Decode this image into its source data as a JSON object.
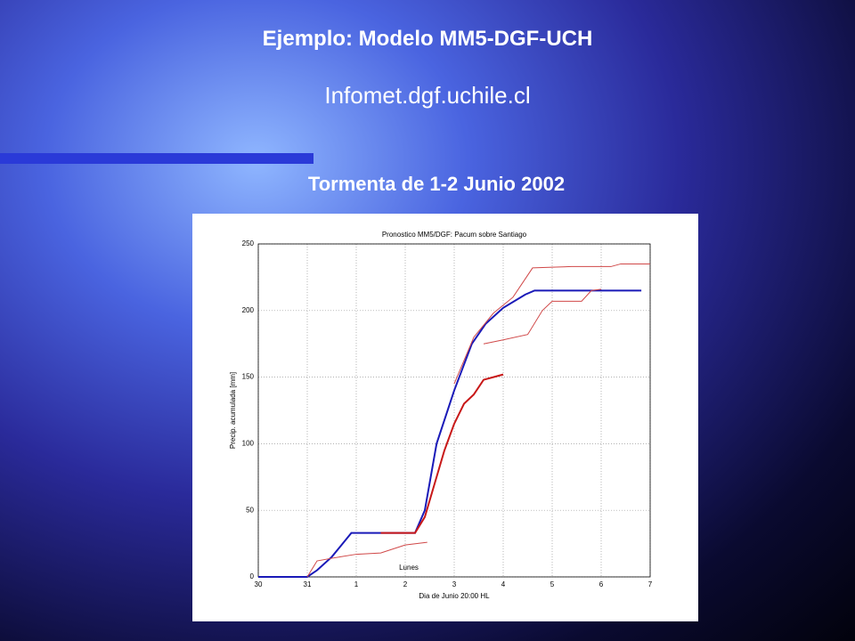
{
  "slide": {
    "title": "Ejemplo: Modelo MM5-DGF-UCH",
    "subtitle": "Infomet.dgf.uchile.cl",
    "heading": "Tormenta de 1-2 Junio 2002"
  },
  "chart_data": {
    "type": "line",
    "title": "Pronostico MM5/DGF: Pacum sobre Santiago",
    "x_label": "Dia de Junio 20:00 HL",
    "y_label": "Precip. acumulada [mm]",
    "annotation": "Lunes",
    "grid": true,
    "xlim": [
      0,
      8
    ],
    "xticks": [
      {
        "value": 0,
        "label": "30"
      },
      {
        "value": 1,
        "label": "31"
      },
      {
        "value": 2,
        "label": "1"
      },
      {
        "value": 3,
        "label": "2"
      },
      {
        "value": 4,
        "label": "3"
      },
      {
        "value": 5,
        "label": "4"
      },
      {
        "value": 6,
        "label": "5"
      },
      {
        "value": 7,
        "label": "6"
      },
      {
        "value": 8,
        "label": "7"
      }
    ],
    "ylim": [
      0,
      250
    ],
    "yticks": [
      0,
      50,
      100,
      150,
      200,
      250
    ],
    "series": [
      {
        "color": "#1a1ab8",
        "width": 2,
        "x": [
          0,
          1,
          1.2,
          1.5,
          1.9,
          3.2,
          3.4,
          3.64,
          4.0,
          4.36,
          4.64,
          5.0,
          5.45,
          5.64,
          7.82
        ],
        "values": [
          0,
          0,
          5,
          15,
          33,
          33,
          50,
          100,
          140,
          175,
          190,
          202,
          212,
          215,
          215
        ]
      },
      {
        "color": "#d04848",
        "width": 1,
        "x": [
          1,
          1.2,
          1.5,
          2,
          2.5,
          3,
          3.45
        ],
        "values": [
          0,
          12,
          14,
          17,
          18,
          24,
          26
        ]
      },
      {
        "color": "#c81818",
        "width": 2,
        "x": [
          2.5,
          3.2,
          3.4,
          3.6,
          3.8,
          4.0,
          4.2,
          4.4,
          4.6,
          4.8,
          5.0
        ],
        "values": [
          33,
          33,
          45,
          70,
          95,
          115,
          130,
          137,
          148,
          150,
          152
        ]
      },
      {
        "color": "#d04848",
        "width": 1,
        "x": [
          4.0,
          4.4,
          4.8,
          5.2,
          5.6,
          6.4,
          7.2,
          7.4,
          8
        ],
        "values": [
          145,
          180,
          198,
          210,
          232,
          233,
          233,
          235,
          235
        ]
      },
      {
        "color": "#d04848",
        "width": 1,
        "x": [
          4.6,
          5.0,
          5.5,
          5.8,
          6.0,
          6.6,
          6.8,
          7.0
        ],
        "values": [
          175,
          178,
          182,
          200,
          207,
          207,
          215,
          216
        ]
      }
    ]
  }
}
